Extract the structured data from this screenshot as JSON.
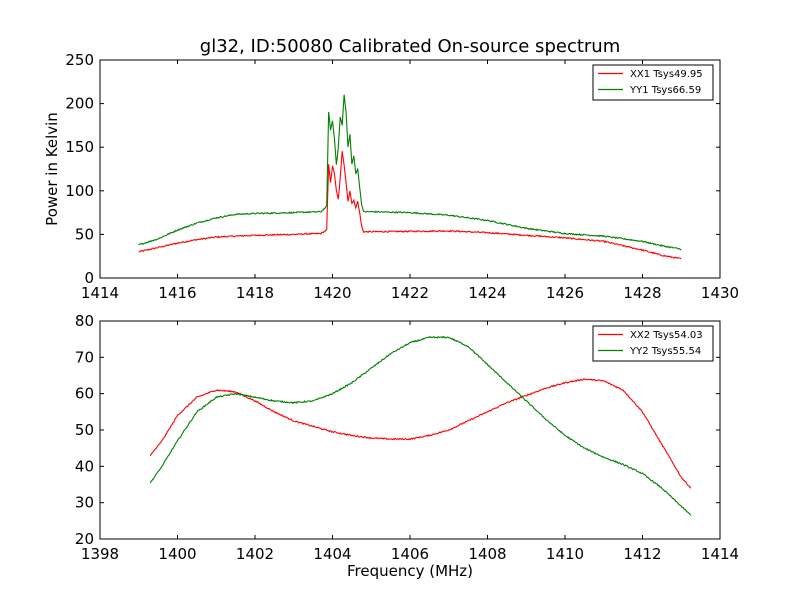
{
  "title": "gl32, ID:50080 Calibrated On-source spectrum",
  "chart_data": [
    {
      "type": "line",
      "ylabel": "Power in Kelvin",
      "xlabel": "",
      "xlim": [
        1414,
        1430
      ],
      "ylim": [
        0,
        250
      ],
      "xticks": [
        "1414",
        "1416",
        "1418",
        "1420",
        "1422",
        "1424",
        "1426",
        "1428",
        "1430"
      ],
      "yticks": [
        "0",
        "50",
        "100",
        "150",
        "200",
        "250"
      ],
      "legend_position": "top-right",
      "series": [
        {
          "name": "XX1 Tsys49.95",
          "color": "#ff0000",
          "points": [
            [
              1415,
              30
            ],
            [
              1415.5,
              35
            ],
            [
              1416,
              40
            ],
            [
              1416.5,
              44
            ],
            [
              1417,
              47
            ],
            [
              1418,
              49
            ],
            [
              1419,
              50
            ],
            [
              1419.7,
              51
            ],
            [
              1419.85,
              55
            ],
            [
              1419.9,
              130
            ],
            [
              1419.95,
              110
            ],
            [
              1420.0,
              128
            ],
            [
              1420.05,
              120
            ],
            [
              1420.1,
              100
            ],
            [
              1420.15,
              90
            ],
            [
              1420.2,
              115
            ],
            [
              1420.25,
              145
            ],
            [
              1420.3,
              130
            ],
            [
              1420.35,
              110
            ],
            [
              1420.4,
              88
            ],
            [
              1420.45,
              100
            ],
            [
              1420.5,
              85
            ],
            [
              1420.55,
              90
            ],
            [
              1420.6,
              80
            ],
            [
              1420.65,
              88
            ],
            [
              1420.7,
              75
            ],
            [
              1420.75,
              60
            ],
            [
              1420.8,
              53
            ],
            [
              1421,
              53
            ],
            [
              1422,
              53.5
            ],
            [
              1423,
              54
            ],
            [
              1424,
              52
            ],
            [
              1425,
              49
            ],
            [
              1426,
              46
            ],
            [
              1427,
              42
            ],
            [
              1428,
              32
            ],
            [
              1428.5,
              26
            ],
            [
              1429,
              22
            ]
          ]
        },
        {
          "name": "YY1 Tsys66.59",
          "color": "#008000",
          "points": [
            [
              1415,
              38
            ],
            [
              1415.5,
              45
            ],
            [
              1416,
              55
            ],
            [
              1416.5,
              63
            ],
            [
              1417,
              69
            ],
            [
              1417.5,
              73
            ],
            [
              1418,
              74
            ],
            [
              1419,
              75
            ],
            [
              1419.7,
              76
            ],
            [
              1419.85,
              82
            ],
            [
              1419.9,
              190
            ],
            [
              1419.95,
              170
            ],
            [
              1420.0,
              180
            ],
            [
              1420.05,
              160
            ],
            [
              1420.1,
              130
            ],
            [
              1420.15,
              150
            ],
            [
              1420.2,
              185
            ],
            [
              1420.25,
              175
            ],
            [
              1420.3,
              210
            ],
            [
              1420.35,
              190
            ],
            [
              1420.4,
              150
            ],
            [
              1420.45,
              165
            ],
            [
              1420.5,
              130
            ],
            [
              1420.55,
              140
            ],
            [
              1420.6,
              120
            ],
            [
              1420.65,
              125
            ],
            [
              1420.7,
              105
            ],
            [
              1420.75,
              85
            ],
            [
              1420.8,
              76
            ],
            [
              1421,
              76
            ],
            [
              1422,
              75
            ],
            [
              1423,
              72
            ],
            [
              1424,
              66
            ],
            [
              1425,
              57
            ],
            [
              1426,
              51
            ],
            [
              1427,
              48
            ],
            [
              1428,
              42
            ],
            [
              1428.5,
              37
            ],
            [
              1429,
              33
            ]
          ]
        }
      ]
    },
    {
      "type": "line",
      "ylabel": "",
      "xlabel": "Frequency (MHz)",
      "xlim": [
        1398,
        1414
      ],
      "ylim": [
        20,
        80
      ],
      "xticks": [
        "1398",
        "1400",
        "1402",
        "1404",
        "1406",
        "1408",
        "1410",
        "1412",
        "1414"
      ],
      "yticks": [
        "20",
        "30",
        "40",
        "50",
        "60",
        "70",
        "80"
      ],
      "legend_position": "top-right",
      "series": [
        {
          "name": "XX2 Tsys54.03",
          "color": "#ff0000",
          "points": [
            [
              1399.3,
              43
            ],
            [
              1399.6,
              47
            ],
            [
              1400,
              54
            ],
            [
              1400.5,
              59
            ],
            [
              1401,
              61
            ],
            [
              1401.5,
              60.5
            ],
            [
              1402,
              58
            ],
            [
              1402.5,
              55
            ],
            [
              1403,
              52.5
            ],
            [
              1403.5,
              51
            ],
            [
              1404,
              49.5
            ],
            [
              1404.5,
              48.5
            ],
            [
              1405,
              47.8
            ],
            [
              1405.5,
              47.5
            ],
            [
              1406,
              47.5
            ],
            [
              1406.5,
              48.5
            ],
            [
              1407,
              50
            ],
            [
              1407.5,
              52.5
            ],
            [
              1408,
              55
            ],
            [
              1408.5,
              57.5
            ],
            [
              1409,
              59.5
            ],
            [
              1409.5,
              61.5
            ],
            [
              1410,
              63
            ],
            [
              1410.5,
              64
            ],
            [
              1411,
              63.5
            ],
            [
              1411.5,
              61
            ],
            [
              1412,
              55
            ],
            [
              1412.5,
              46
            ],
            [
              1413,
              37
            ],
            [
              1413.25,
              34
            ]
          ]
        },
        {
          "name": "YY2 Tsys55.54",
          "color": "#008000",
          "points": [
            [
              1399.3,
              35.5
            ],
            [
              1399.6,
              40
            ],
            [
              1400,
              47
            ],
            [
              1400.5,
              55
            ],
            [
              1401,
              59
            ],
            [
              1401.5,
              60
            ],
            [
              1402,
              59
            ],
            [
              1402.5,
              58
            ],
            [
              1403,
              57.5
            ],
            [
              1403.5,
              58
            ],
            [
              1404,
              60
            ],
            [
              1404.5,
              63
            ],
            [
              1405,
              67
            ],
            [
              1405.5,
              71
            ],
            [
              1406,
              74
            ],
            [
              1406.5,
              75.5
            ],
            [
              1407,
              75.5
            ],
            [
              1407.5,
              73
            ],
            [
              1408,
              68
            ],
            [
              1408.5,
              63
            ],
            [
              1409,
              58
            ],
            [
              1409.5,
              53
            ],
            [
              1410,
              48.5
            ],
            [
              1410.5,
              45
            ],
            [
              1411,
              42.5
            ],
            [
              1411.5,
              40.5
            ],
            [
              1412,
              38
            ],
            [
              1412.5,
              34
            ],
            [
              1413,
              29
            ],
            [
              1413.25,
              26.5
            ]
          ]
        }
      ]
    }
  ]
}
